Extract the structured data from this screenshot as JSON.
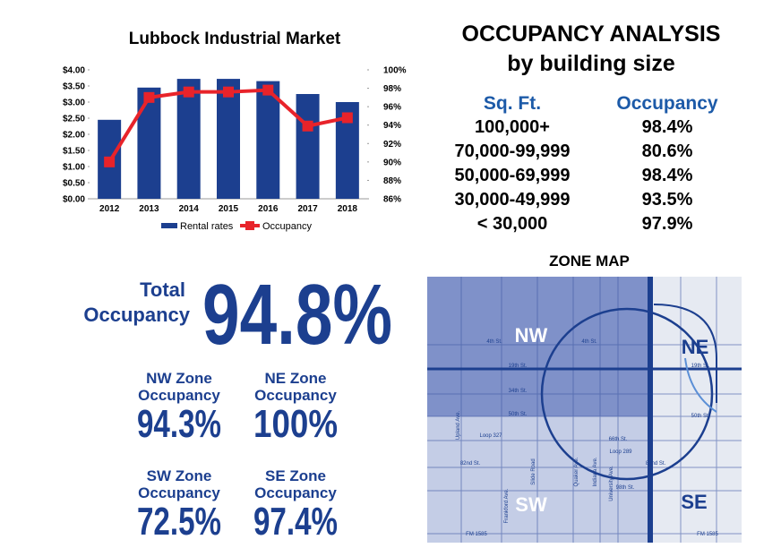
{
  "chart_data": {
    "type": "bar_line",
    "title": "Lubbock Industrial Market",
    "categories": [
      "2012",
      "2013",
      "2014",
      "2015",
      "2016",
      "2017",
      "2018"
    ],
    "series": [
      {
        "name": "Rental rates",
        "type": "bar",
        "color": "#1c3f8f",
        "values": [
          2.45,
          3.45,
          3.72,
          3.72,
          3.65,
          3.25,
          3.0
        ]
      },
      {
        "name": "Occupancy",
        "type": "line",
        "axis": "y2",
        "color": "#e8232a",
        "values": [
          90,
          97,
          97.6,
          97.6,
          97.8,
          93.9,
          94.8
        ]
      }
    ],
    "ylim": [
      0,
      4
    ],
    "yticks": [
      {
        "value": 0,
        "label": "$0.00"
      },
      {
        "value": 0.5,
        "label": "$0.50"
      },
      {
        "value": 1,
        "label": "$1.00"
      },
      {
        "value": 1.5,
        "label": "$1.50"
      },
      {
        "value": 2,
        "label": "$2.00"
      },
      {
        "value": 2.5,
        "label": "$2.50"
      },
      {
        "value": 3,
        "label": "$3.00"
      },
      {
        "value": 3.5,
        "label": "$3.50"
      },
      {
        "value": 4,
        "label": "$4.00"
      }
    ],
    "y2lim": [
      86,
      100
    ],
    "y2ticks": [
      {
        "value": 86,
        "label": "86%"
      },
      {
        "value": 88,
        "label": "88%"
      },
      {
        "value": 90,
        "label": "90%"
      },
      {
        "value": 92,
        "label": "92%"
      },
      {
        "value": 94,
        "label": "94%"
      },
      {
        "value": 96,
        "label": "96%"
      },
      {
        "value": 98,
        "label": "98%"
      },
      {
        "value": 100,
        "label": "100%"
      }
    ],
    "legend": "bottom",
    "grid": false
  },
  "occupancy_table": {
    "title": "OCCUPANCY ANALYSIS",
    "subtitle": "by building size",
    "headers": [
      "Sq. Ft.",
      "Occupancy"
    ],
    "rows": [
      [
        "100,000+",
        "98.4%"
      ],
      [
        "70,000-99,999",
        "80.6%"
      ],
      [
        "50,000-69,999",
        "98.4%"
      ],
      [
        "30,000-49,999",
        "93.5%"
      ],
      [
        "< 30,000",
        "97.9%"
      ]
    ]
  },
  "total": {
    "label_1": "Total",
    "label_2": "Occupancy",
    "value": "94.8%"
  },
  "zones": [
    {
      "name": "NW Zone",
      "label": "Occupancy",
      "value": "94.3%"
    },
    {
      "name": "NE Zone",
      "label": "Occupancy",
      "value": "100%"
    },
    {
      "name": "SW Zone",
      "label": "Occupancy",
      "value": "72.5%"
    },
    {
      "name": "SE Zone",
      "label": "Occupancy",
      "value": "97.4%"
    }
  ],
  "zone_map": {
    "title": "ZONE MAP",
    "labels": [
      "NW",
      "NE",
      "SW",
      "SE"
    ],
    "streets": [
      "4th St.",
      "4th St.",
      "19th St.",
      "19th St.",
      "34th St.",
      "50th St.",
      "50th St.",
      "Loop 327",
      "66th St.",
      "82nd St.",
      "82nd St.",
      "98th St.",
      "Loop 289",
      "FM 1585",
      "FM 1585",
      "Upland Ave.",
      "Frankford Ave.",
      "Slide Road",
      "Quaker Ave.",
      "Indiana Ave.",
      "University Ave."
    ]
  }
}
